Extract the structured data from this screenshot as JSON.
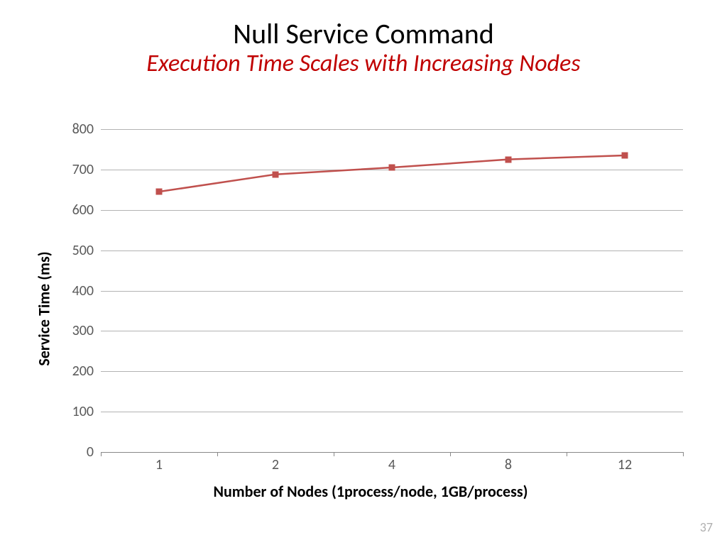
{
  "header": {
    "title": "Null Service Command",
    "subtitle": "Execution Time Scales with Increasing Nodes",
    "title_color": "#000000",
    "subtitle_color": "#c00000",
    "title_fontsize": 40,
    "subtitle_fontsize": 34
  },
  "chart": {
    "type": "line",
    "y_label": "Service  Time (ms)",
    "x_label": "Number of Nodes (1process/node, 1GB/process)",
    "axis_label_fontsize": 22,
    "tick_fontsize": 20,
    "ylim": [
      0,
      800
    ],
    "ytick_step": 100,
    "x_categories": [
      "1",
      "2",
      "4",
      "8",
      "12"
    ],
    "values": [
      645,
      688,
      705,
      725,
      735
    ],
    "line_color": "#c0504d",
    "line_width": 2.5,
    "marker_shape": "square",
    "marker_size": 9,
    "marker_color": "#c0504d",
    "grid_color": "#b3b3b3",
    "background_color": "#ffffff",
    "tick_label_color": "#595959"
  },
  "footer": {
    "page_number": "37"
  }
}
